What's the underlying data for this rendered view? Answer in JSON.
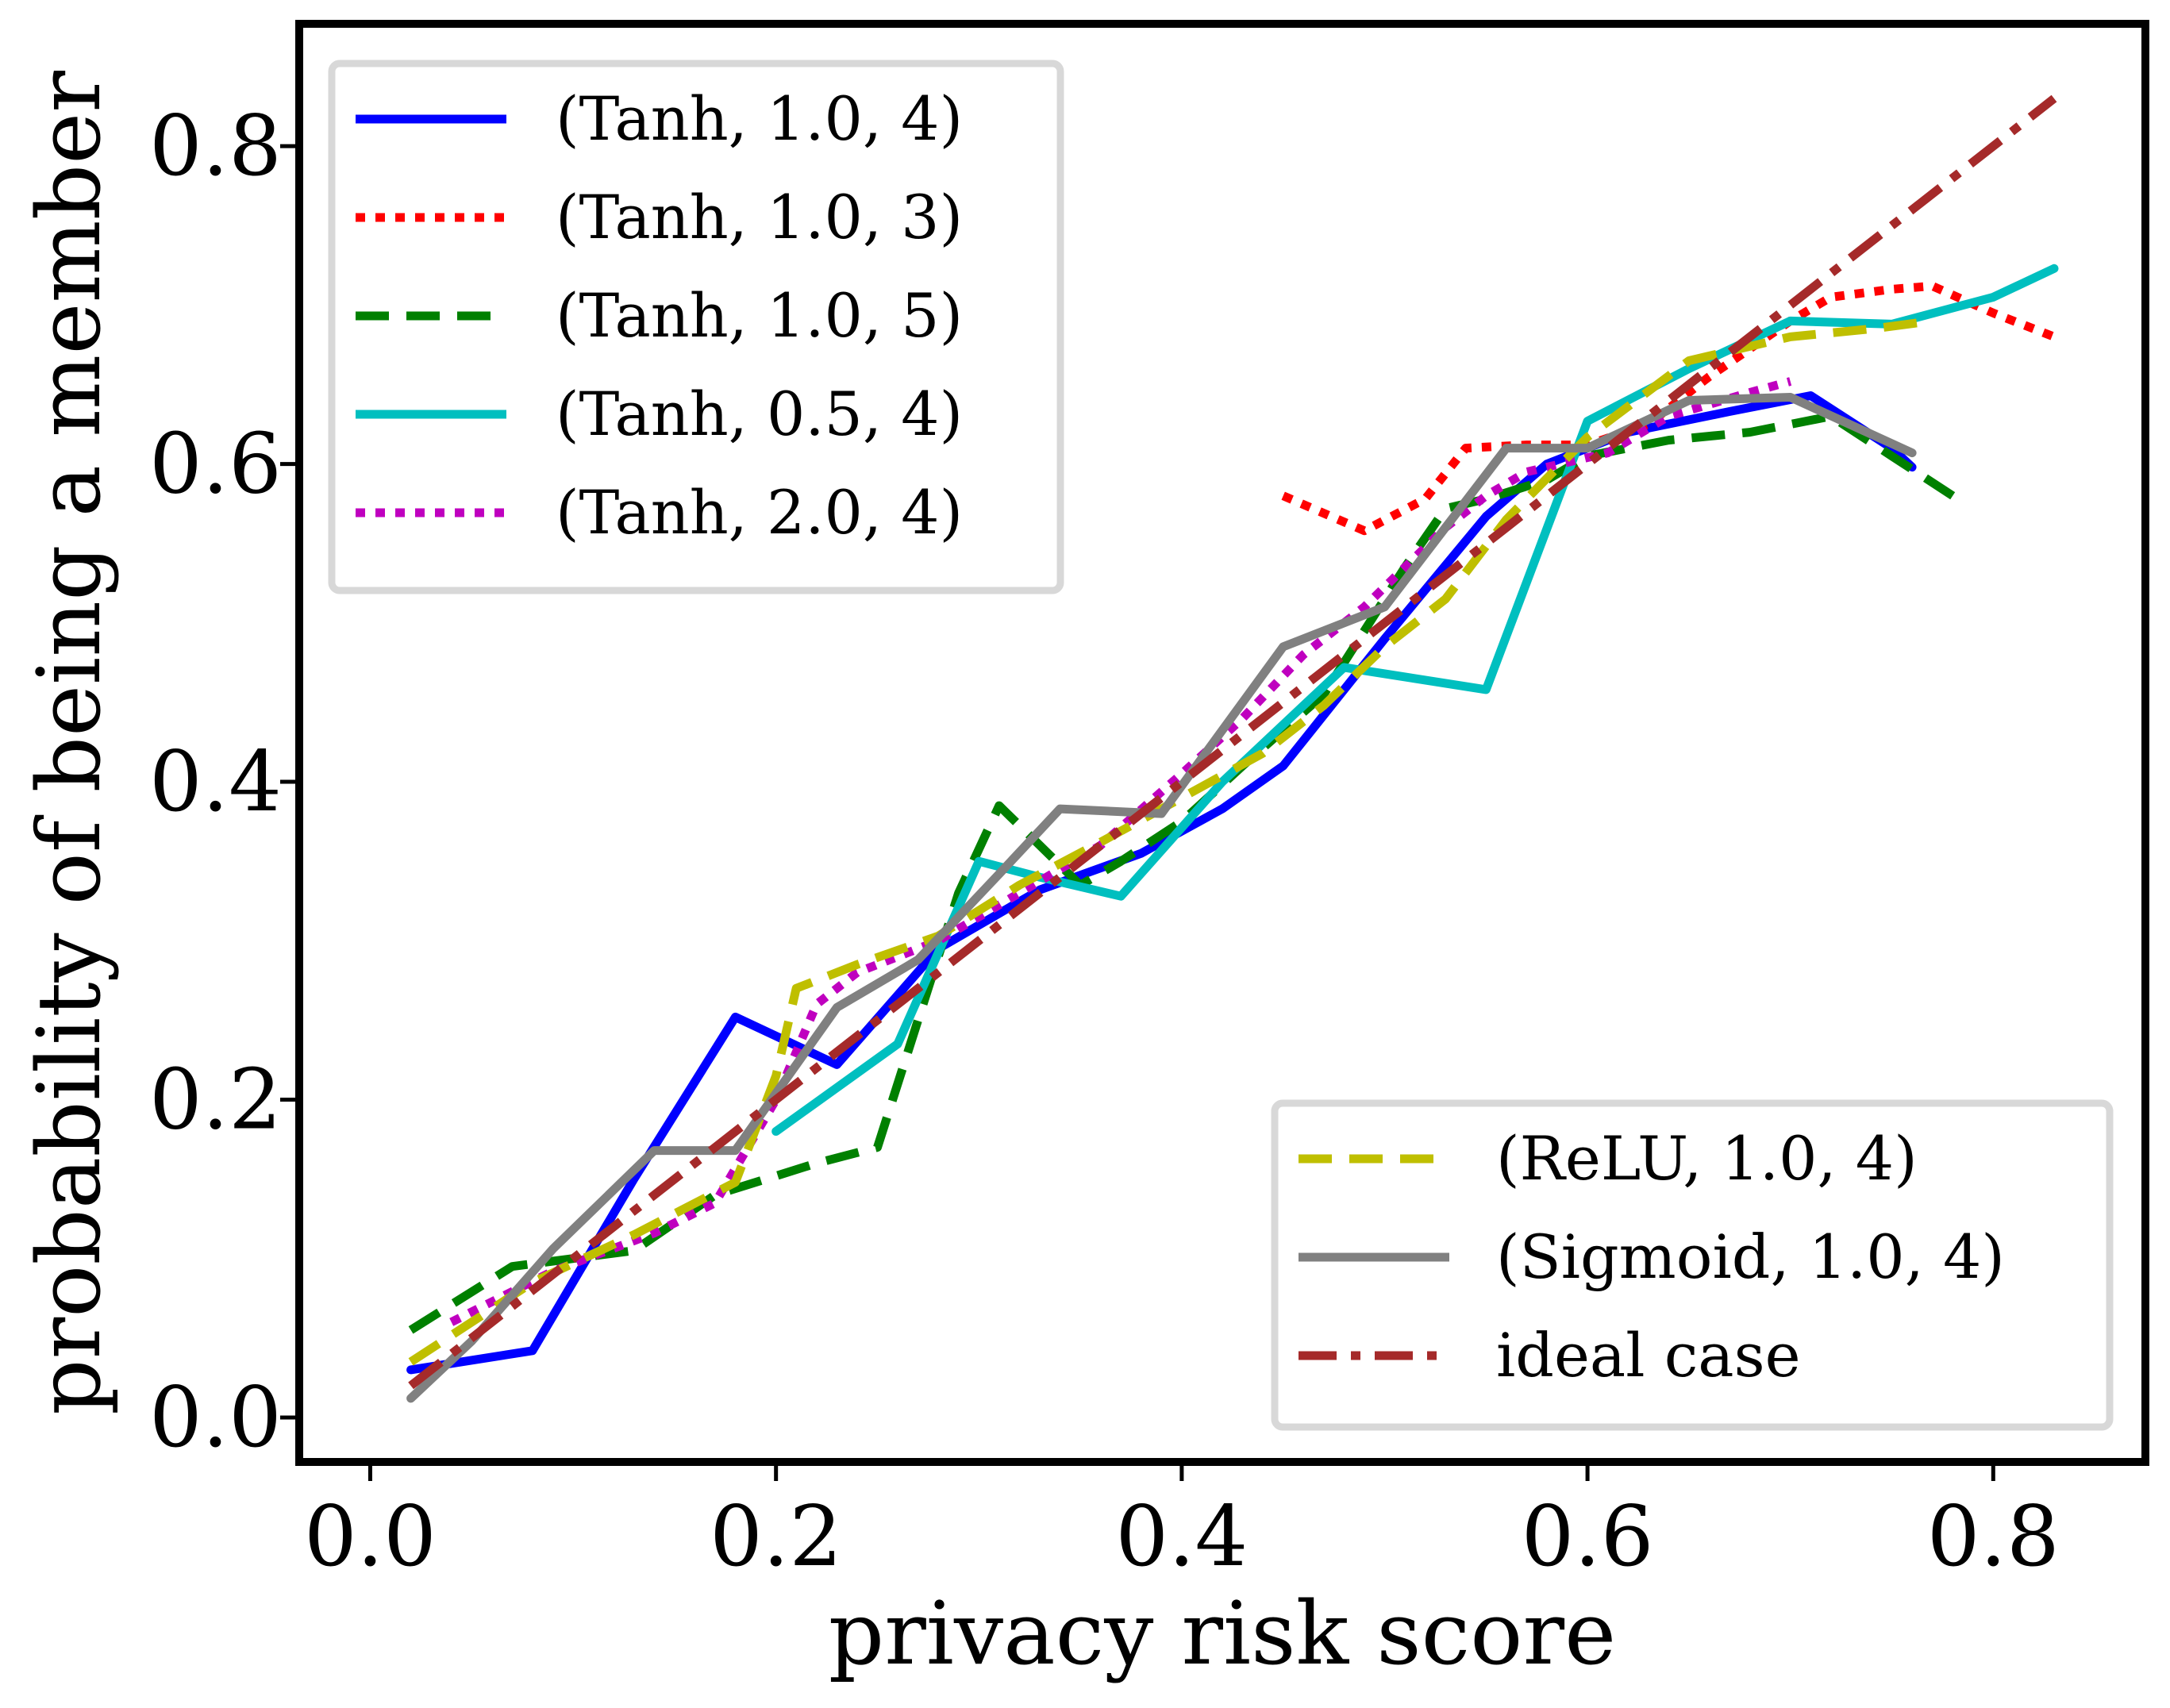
{
  "chart_data": {
    "type": "line",
    "title": "",
    "xlabel": "privacy risk score",
    "ylabel": "probability of being a member",
    "xlim": [
      -0.035,
      0.875
    ],
    "ylim": [
      -0.028,
      0.877
    ],
    "xticks": [
      0.0,
      0.2,
      0.4,
      0.6,
      0.8
    ],
    "xtick_labels": [
      "0.0",
      "0.2",
      "0.4",
      "0.6",
      "0.8"
    ],
    "yticks": [
      0.0,
      0.2,
      0.4,
      0.6,
      0.8
    ],
    "ytick_labels": [
      "0.0",
      "0.2",
      "0.4",
      "0.6",
      "0.8"
    ],
    "grid": false,
    "legends": [
      {
        "placement": "upper-left",
        "entries": [
          "(Tanh, 1.0, 4)",
          "(Tanh, 1.0, 3)",
          "(Tanh, 1.0, 5)",
          "(Tanh, 0.5, 4)",
          "(Tanh, 2.0, 4)"
        ]
      },
      {
        "placement": "lower-right",
        "entries": [
          "(ReLU, 1.0, 4)",
          "(Sigmoid, 1.0, 4)",
          "ideal case"
        ]
      }
    ],
    "series": [
      {
        "name": "(Tanh, 1.0, 4)",
        "color": "#0000ff",
        "style": "solid",
        "points": [
          [
            0.02,
            0.03
          ],
          [
            0.08,
            0.042
          ],
          [
            0.13,
            0.15
          ],
          [
            0.18,
            0.252
          ],
          [
            0.23,
            0.222
          ],
          [
            0.28,
            0.295
          ],
          [
            0.33,
            0.332
          ],
          [
            0.38,
            0.355
          ],
          [
            0.42,
            0.383
          ],
          [
            0.45,
            0.41
          ],
          [
            0.5,
            0.49
          ],
          [
            0.55,
            0.567
          ],
          [
            0.58,
            0.6
          ],
          [
            0.62,
            0.62
          ],
          [
            0.67,
            0.633
          ],
          [
            0.71,
            0.643
          ],
          [
            0.75,
            0.61
          ],
          [
            0.76,
            0.598
          ]
        ]
      },
      {
        "name": "(Tanh, 1.0, 3)",
        "color": "#ff0000",
        "style": "dotted",
        "points": [
          [
            0.45,
            0.58
          ],
          [
            0.49,
            0.558
          ],
          [
            0.52,
            0.578
          ],
          [
            0.54,
            0.61
          ],
          [
            0.57,
            0.612
          ],
          [
            0.6,
            0.612
          ],
          [
            0.63,
            0.625
          ],
          [
            0.66,
            0.655
          ],
          [
            0.7,
            0.69
          ],
          [
            0.72,
            0.705
          ],
          [
            0.75,
            0.71
          ],
          [
            0.77,
            0.712
          ],
          [
            0.8,
            0.695
          ],
          [
            0.83,
            0.68
          ]
        ]
      },
      {
        "name": "(Tanh, 1.0, 5)",
        "color": "#008000",
        "style": "dashed",
        "points": [
          [
            0.02,
            0.055
          ],
          [
            0.07,
            0.095
          ],
          [
            0.13,
            0.105
          ],
          [
            0.17,
            0.14
          ],
          [
            0.22,
            0.16
          ],
          [
            0.25,
            0.17
          ],
          [
            0.29,
            0.33
          ],
          [
            0.31,
            0.385
          ],
          [
            0.33,
            0.36
          ],
          [
            0.35,
            0.335
          ],
          [
            0.37,
            0.35
          ],
          [
            0.4,
            0.375
          ],
          [
            0.43,
            0.41
          ],
          [
            0.47,
            0.455
          ],
          [
            0.51,
            0.535
          ],
          [
            0.53,
            0.572
          ],
          [
            0.55,
            0.578
          ],
          [
            0.58,
            0.59
          ],
          [
            0.6,
            0.605
          ],
          [
            0.64,
            0.615
          ],
          [
            0.68,
            0.62
          ],
          [
            0.72,
            0.63
          ],
          [
            0.75,
            0.605
          ],
          [
            0.78,
            0.58
          ]
        ]
      },
      {
        "name": "(Tanh, 0.5, 4)",
        "color": "#00bfbf",
        "style": "solid",
        "points": [
          [
            0.2,
            0.18
          ],
          [
            0.26,
            0.235
          ],
          [
            0.3,
            0.35
          ],
          [
            0.33,
            0.34
          ],
          [
            0.37,
            0.328
          ],
          [
            0.42,
            0.4
          ],
          [
            0.48,
            0.472
          ],
          [
            0.55,
            0.458
          ],
          [
            0.6,
            0.627
          ],
          [
            0.65,
            0.66
          ],
          [
            0.7,
            0.69
          ],
          [
            0.75,
            0.688
          ],
          [
            0.8,
            0.705
          ],
          [
            0.83,
            0.723
          ]
        ]
      },
      {
        "name": "(Tanh, 2.0, 4)",
        "color": "#bf00bf",
        "style": "dotted",
        "points": [
          [
            0.04,
            0.06
          ],
          [
            0.09,
            0.092
          ],
          [
            0.14,
            0.116
          ],
          [
            0.17,
            0.135
          ],
          [
            0.2,
            0.2
          ],
          [
            0.22,
            0.26
          ],
          [
            0.24,
            0.28
          ],
          [
            0.28,
            0.3
          ],
          [
            0.32,
            0.33
          ],
          [
            0.36,
            0.36
          ],
          [
            0.4,
            0.405
          ],
          [
            0.43,
            0.44
          ],
          [
            0.46,
            0.48
          ],
          [
            0.49,
            0.51
          ],
          [
            0.51,
            0.535
          ],
          [
            0.53,
            0.56
          ],
          [
            0.55,
            0.58
          ],
          [
            0.57,
            0.595
          ],
          [
            0.61,
            0.607
          ],
          [
            0.64,
            0.63
          ],
          [
            0.68,
            0.645
          ],
          [
            0.7,
            0.652
          ]
        ]
      },
      {
        "name": "(ReLU, 1.0, 4)",
        "color": "#bfbf00",
        "style": "dashed",
        "points": [
          [
            0.02,
            0.035
          ],
          [
            0.08,
            0.085
          ],
          [
            0.13,
            0.115
          ],
          [
            0.18,
            0.148
          ],
          [
            0.2,
            0.215
          ],
          [
            0.21,
            0.27
          ],
          [
            0.24,
            0.285
          ],
          [
            0.28,
            0.303
          ],
          [
            0.32,
            0.335
          ],
          [
            0.36,
            0.362
          ],
          [
            0.4,
            0.39
          ],
          [
            0.44,
            0.418
          ],
          [
            0.47,
            0.448
          ],
          [
            0.5,
            0.485
          ],
          [
            0.53,
            0.515
          ],
          [
            0.56,
            0.565
          ],
          [
            0.6,
            0.617
          ],
          [
            0.65,
            0.665
          ],
          [
            0.7,
            0.68
          ],
          [
            0.74,
            0.685
          ],
          [
            0.77,
            0.69
          ]
        ]
      },
      {
        "name": "(Sigmoid, 1.0, 4)",
        "color": "#808080",
        "style": "solid",
        "points": [
          [
            0.02,
            0.012
          ],
          [
            0.05,
            0.048
          ],
          [
            0.09,
            0.106
          ],
          [
            0.14,
            0.168
          ],
          [
            0.18,
            0.168
          ],
          [
            0.23,
            0.258
          ],
          [
            0.27,
            0.288
          ],
          [
            0.31,
            0.342
          ],
          [
            0.34,
            0.383
          ],
          [
            0.39,
            0.38
          ],
          [
            0.45,
            0.485
          ],
          [
            0.5,
            0.51
          ],
          [
            0.56,
            0.61
          ],
          [
            0.6,
            0.61
          ],
          [
            0.65,
            0.64
          ],
          [
            0.7,
            0.642
          ],
          [
            0.76,
            0.607
          ]
        ]
      },
      {
        "name": "ideal case",
        "color": "#a52a2a",
        "style": "dashdot",
        "points": [
          [
            0.02,
            0.02
          ],
          [
            0.83,
            0.83
          ]
        ]
      }
    ]
  }
}
